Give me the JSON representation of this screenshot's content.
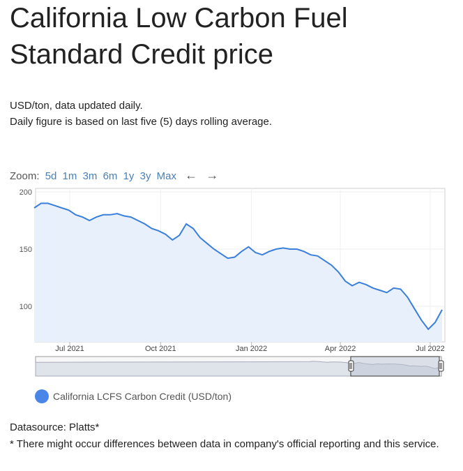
{
  "page": {
    "title": "California Low Carbon Fuel Standard Credit price",
    "subtitle_line1": "USD/ton, data updated daily.",
    "subtitle_line2": "Daily figure is based on last five (5) days rolling average.",
    "datasource": "Datasource: Platts*",
    "disclaimer": "* There might occur differences between data in company's official reporting and this service."
  },
  "zoom": {
    "label": "Zoom:",
    "options": [
      "5d",
      "1m",
      "3m",
      "6m",
      "1y",
      "3y",
      "Max"
    ],
    "back_arrow": "←",
    "forward_arrow": "→"
  },
  "colors": {
    "line": "#3a7fd9",
    "area": "#e8f0fb",
    "navigator_fill": "#dfe3ea",
    "navigator_selected": "#b9c2d2",
    "legend_dot": "#4a86e8"
  },
  "chart_data": {
    "type": "area",
    "title": "",
    "xlabel": "",
    "ylabel": "",
    "ylim": [
      70,
      200
    ],
    "yticks": [
      100,
      150,
      200
    ],
    "xticks": [
      "Jul 2021",
      "Oct 2021",
      "Jan 2022",
      "Apr 2022",
      "Jul 2022"
    ],
    "grid": true,
    "legend_position": "bottom-left",
    "series": [
      {
        "name": "California LCFS Carbon Credit (USD/ton)",
        "x": [
          "2021-05-26",
          "2021-06-02",
          "2021-06-09",
          "2021-06-16",
          "2021-06-23",
          "2021-06-30",
          "2021-07-07",
          "2021-07-14",
          "2021-07-21",
          "2021-07-28",
          "2021-08-04",
          "2021-08-11",
          "2021-08-18",
          "2021-08-25",
          "2021-09-01",
          "2021-09-08",
          "2021-09-15",
          "2021-09-22",
          "2021-09-29",
          "2021-10-06",
          "2021-10-13",
          "2021-10-20",
          "2021-10-27",
          "2021-11-03",
          "2021-11-10",
          "2021-11-17",
          "2021-11-24",
          "2021-12-01",
          "2021-12-08",
          "2021-12-15",
          "2021-12-22",
          "2021-12-29",
          "2022-01-05",
          "2022-01-12",
          "2022-01-19",
          "2022-01-26",
          "2022-02-02",
          "2022-02-09",
          "2022-02-16",
          "2022-02-23",
          "2022-03-02",
          "2022-03-09",
          "2022-03-16",
          "2022-03-23",
          "2022-03-30",
          "2022-04-06",
          "2022-04-13",
          "2022-04-20",
          "2022-04-27",
          "2022-05-04",
          "2022-05-11",
          "2022-05-18",
          "2022-05-25",
          "2022-06-01",
          "2022-06-08",
          "2022-06-15",
          "2022-06-22",
          "2022-06-29",
          "2022-07-06",
          "2022-07-13"
        ],
        "values": [
          186,
          190,
          190,
          188,
          186,
          184,
          180,
          178,
          175,
          178,
          180,
          180,
          181,
          179,
          178,
          175,
          172,
          168,
          166,
          163,
          158,
          162,
          172,
          168,
          160,
          155,
          150,
          146,
          142,
          143,
          148,
          152,
          147,
          145,
          148,
          150,
          151,
          150,
          150,
          148,
          145,
          144,
          140,
          136,
          130,
          122,
          118,
          121,
          119,
          116,
          114,
          112,
          116,
          115,
          108,
          98,
          88,
          80,
          86,
          97
        ]
      }
    ]
  }
}
